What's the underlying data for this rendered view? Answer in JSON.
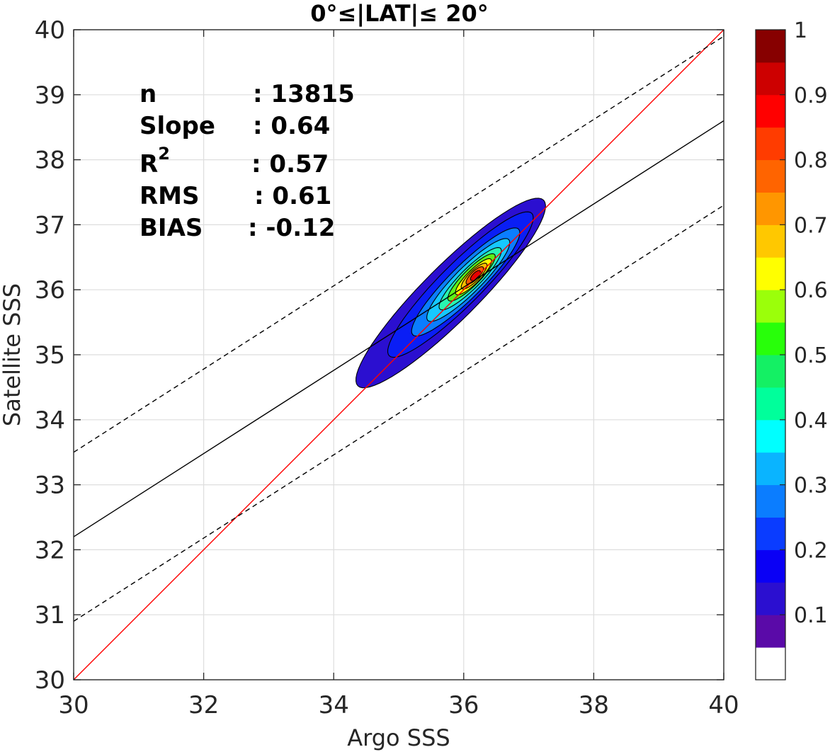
{
  "chart_data": {
    "type": "contour-scatter",
    "title": "0°≤|LAT|≤ 20°",
    "xlabel": "Argo SSS",
    "ylabel": "Satellite SSS",
    "xlim": [
      30,
      40
    ],
    "ylim": [
      30,
      40
    ],
    "xticks": [
      "30",
      "32",
      "34",
      "36",
      "38",
      "40"
    ],
    "yticks": [
      "30",
      "31",
      "32",
      "33",
      "34",
      "35",
      "36",
      "37",
      "38",
      "39",
      "40"
    ],
    "grid": true,
    "stats": {
      "rows": [
        {
          "label": "n",
          "value": ": 13815"
        },
        {
          "label": "Slope",
          "value": ": 0.64"
        },
        {
          "label": "R",
          "sup": "2",
          "value": ": 0.57"
        },
        {
          "label": "RMS",
          "value": ": 0.61"
        },
        {
          "label": "BIAS",
          "value": ": -0.12"
        }
      ]
    },
    "lines": [
      {
        "name": "1:1",
        "color": "#ff0000",
        "style": "solid",
        "points": [
          [
            30,
            30
          ],
          [
            40,
            40
          ]
        ]
      },
      {
        "name": "fit",
        "color": "#000000",
        "style": "solid",
        "points": [
          [
            30,
            32.2
          ],
          [
            40,
            38.6
          ]
        ]
      },
      {
        "name": "fit+1",
        "color": "#000000",
        "style": "dashed",
        "points": [
          [
            30,
            33.5
          ],
          [
            40,
            39.9
          ]
        ]
      },
      {
        "name": "fit-1",
        "color": "#000000",
        "style": "dashed",
        "points": [
          [
            30,
            30.9
          ],
          [
            40,
            37.3
          ]
        ]
      }
    ],
    "density": {
      "center": [
        36.18,
        36.22
      ],
      "levels": [
        0.1,
        0.2,
        0.3,
        0.4,
        0.5,
        0.6,
        0.7,
        0.8,
        0.9
      ],
      "level_shapes": [
        {
          "level": 0.05,
          "cx": 35.8,
          "cy": 35.95,
          "a": 2.02,
          "b": 0.42,
          "color": "#2b0fd0"
        },
        {
          "level": 0.1,
          "cx": 35.95,
          "cy": 36.08,
          "a": 1.55,
          "b": 0.32,
          "color": "#0a1ef5"
        },
        {
          "level": 0.2,
          "cx": 36.03,
          "cy": 36.12,
          "a": 1.15,
          "b": 0.25,
          "color": "#0b7dff"
        },
        {
          "level": 0.3,
          "cx": 36.07,
          "cy": 36.15,
          "a": 0.88,
          "b": 0.2,
          "color": "#16c8ff"
        },
        {
          "level": 0.4,
          "cx": 36.1,
          "cy": 36.17,
          "a": 0.66,
          "b": 0.155,
          "color": "#28f5b0"
        },
        {
          "level": 0.5,
          "cx": 36.12,
          "cy": 36.19,
          "a": 0.5,
          "b": 0.125,
          "color": "#5cf019"
        },
        {
          "level": 0.6,
          "cx": 36.15,
          "cy": 36.2,
          "a": 0.38,
          "b": 0.1,
          "color": "#ffff00"
        },
        {
          "level": 0.7,
          "cx": 36.16,
          "cy": 36.21,
          "a": 0.27,
          "b": 0.08,
          "color": "#ffbf00"
        },
        {
          "level": 0.8,
          "cx": 36.17,
          "cy": 36.22,
          "a": 0.18,
          "b": 0.06,
          "color": "#ff5a00"
        },
        {
          "level": 0.9,
          "cx": 36.18,
          "cy": 36.22,
          "a": 0.1,
          "b": 0.04,
          "color": "#e60000"
        }
      ]
    },
    "colorbar": {
      "ticks": [
        "0.1",
        "0.2",
        "0.3",
        "0.4",
        "0.5",
        "0.6",
        "0.7",
        "0.8",
        "0.9",
        "1"
      ],
      "tick_values": [
        0.1,
        0.2,
        0.3,
        0.4,
        0.5,
        0.6,
        0.7,
        0.8,
        0.9,
        1.0
      ],
      "range": [
        0,
        1
      ],
      "bands": [
        {
          "from": 0.0,
          "to": 0.05,
          "color": "#ffffff"
        },
        {
          "from": 0.05,
          "to": 0.1,
          "color": "#5a0aa8"
        },
        {
          "from": 0.1,
          "to": 0.15,
          "color": "#2b0fd0"
        },
        {
          "from": 0.15,
          "to": 0.2,
          "color": "#0a00f5"
        },
        {
          "from": 0.2,
          "to": 0.25,
          "color": "#0a3cff"
        },
        {
          "from": 0.25,
          "to": 0.3,
          "color": "#0b7dff"
        },
        {
          "from": 0.3,
          "to": 0.35,
          "color": "#0ab4ff"
        },
        {
          "from": 0.35,
          "to": 0.4,
          "color": "#00ffff"
        },
        {
          "from": 0.4,
          "to": 0.45,
          "color": "#00ff9b"
        },
        {
          "from": 0.45,
          "to": 0.5,
          "color": "#14f064"
        },
        {
          "from": 0.5,
          "to": 0.55,
          "color": "#28ff0a"
        },
        {
          "from": 0.55,
          "to": 0.6,
          "color": "#9bff0a"
        },
        {
          "from": 0.6,
          "to": 0.65,
          "color": "#ffff00"
        },
        {
          "from": 0.65,
          "to": 0.7,
          "color": "#ffc800"
        },
        {
          "from": 0.7,
          "to": 0.75,
          "color": "#ff9600"
        },
        {
          "from": 0.75,
          "to": 0.8,
          "color": "#ff6400"
        },
        {
          "from": 0.8,
          "to": 0.85,
          "color": "#ff3c00"
        },
        {
          "from": 0.85,
          "to": 0.9,
          "color": "#ff0000"
        },
        {
          "from": 0.9,
          "to": 0.95,
          "color": "#cd0000"
        },
        {
          "from": 0.95,
          "to": 1.0,
          "color": "#870000"
        }
      ]
    }
  }
}
